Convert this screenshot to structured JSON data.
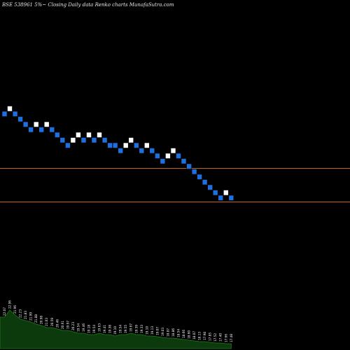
{
  "title": "BSE 538961 5%~  Closing Daily data  Renko  charts MunafaSutra.com",
  "chart_data": {
    "type": "renko",
    "reference_lines": [
      {
        "name": "upper",
        "color": "#c86414"
      },
      {
        "name": "lower",
        "color": "#c86414"
      }
    ],
    "colors": {
      "up_brick": "#ffffff",
      "down_brick": "#1e6fe0",
      "volume_fill": "#0c3a0c",
      "volume_line": "#1f7a1f"
    },
    "bricks": [
      {
        "level": 10,
        "dir": "down"
      },
      {
        "level": 11,
        "dir": "up"
      },
      {
        "level": 10,
        "dir": "down"
      },
      {
        "level": 9,
        "dir": "down"
      },
      {
        "level": 8,
        "dir": "down"
      },
      {
        "level": 7,
        "dir": "down"
      },
      {
        "level": 8,
        "dir": "up"
      },
      {
        "level": 7,
        "dir": "down"
      },
      {
        "level": 8,
        "dir": "up"
      },
      {
        "level": 7,
        "dir": "down"
      },
      {
        "level": 6,
        "dir": "down"
      },
      {
        "level": 5,
        "dir": "down"
      },
      {
        "level": 4,
        "dir": "down"
      },
      {
        "level": 5,
        "dir": "up"
      },
      {
        "level": 6,
        "dir": "up"
      },
      {
        "level": 5,
        "dir": "down"
      },
      {
        "level": 6,
        "dir": "up"
      },
      {
        "level": 5,
        "dir": "down"
      },
      {
        "level": 6,
        "dir": "up"
      },
      {
        "level": 5,
        "dir": "down"
      },
      {
        "level": 4,
        "dir": "down"
      },
      {
        "level": 4,
        "dir": "down"
      },
      {
        "level": 3,
        "dir": "down"
      },
      {
        "level": 4,
        "dir": "up"
      },
      {
        "level": 5,
        "dir": "up"
      },
      {
        "level": 4,
        "dir": "down"
      },
      {
        "level": 3,
        "dir": "down"
      },
      {
        "level": 4,
        "dir": "up"
      },
      {
        "level": 3,
        "dir": "down"
      },
      {
        "level": 2,
        "dir": "down"
      },
      {
        "level": 1,
        "dir": "down"
      },
      {
        "level": 2,
        "dir": "up"
      },
      {
        "level": 3,
        "dir": "up"
      },
      {
        "level": 2,
        "dir": "down"
      },
      {
        "level": 1,
        "dir": "down"
      },
      {
        "level": 0,
        "dir": "down"
      },
      {
        "level": -1,
        "dir": "down"
      },
      {
        "level": -2,
        "dir": "down"
      },
      {
        "level": -3,
        "dir": "down"
      },
      {
        "level": -4,
        "dir": "down"
      },
      {
        "level": -5,
        "dir": "down"
      },
      {
        "level": -6,
        "dir": "down"
      },
      {
        "level": -5,
        "dir": "up"
      },
      {
        "level": -6,
        "dir": "down"
      }
    ],
    "volume_labels": [
      "22.07",
      "22.96",
      "21.96",
      "22.23",
      "21.83",
      "21.99",
      "21.88",
      "20.98",
      "21.03",
      "20.59",
      "20.46",
      "20.61",
      "19.97",
      "20.23",
      "19.54",
      "19.46",
      "19.18",
      "19.54",
      "19.63",
      "19.41",
      "19.38",
      "19.10",
      "19.54",
      "19.55",
      "19.67",
      "19.39",
      "19.33",
      "19.10",
      "19.13",
      "19.07",
      "19.03",
      "18.87",
      "18.86",
      "18.54",
      "18.66",
      "18.60",
      "18.07",
      "18.13",
      "17.98",
      "17.85",
      "17.52",
      "17.40",
      "17.66",
      "17.48"
    ],
    "volume_levels": [
      0.45,
      0.55,
      0.48,
      0.42,
      0.4,
      0.38,
      0.35,
      0.33,
      0.3,
      0.3,
      0.28,
      0.26,
      0.26,
      0.24,
      0.22,
      0.22,
      0.2,
      0.2,
      0.22,
      0.2,
      0.2,
      0.18,
      0.2,
      0.2,
      0.22,
      0.2,
      0.2,
      0.18,
      0.18,
      0.17,
      0.16,
      0.15,
      0.15,
      0.14,
      0.13,
      0.12,
      0.11,
      0.1,
      0.1,
      0.09,
      0.08,
      0.08,
      0.07,
      0.07
    ]
  }
}
